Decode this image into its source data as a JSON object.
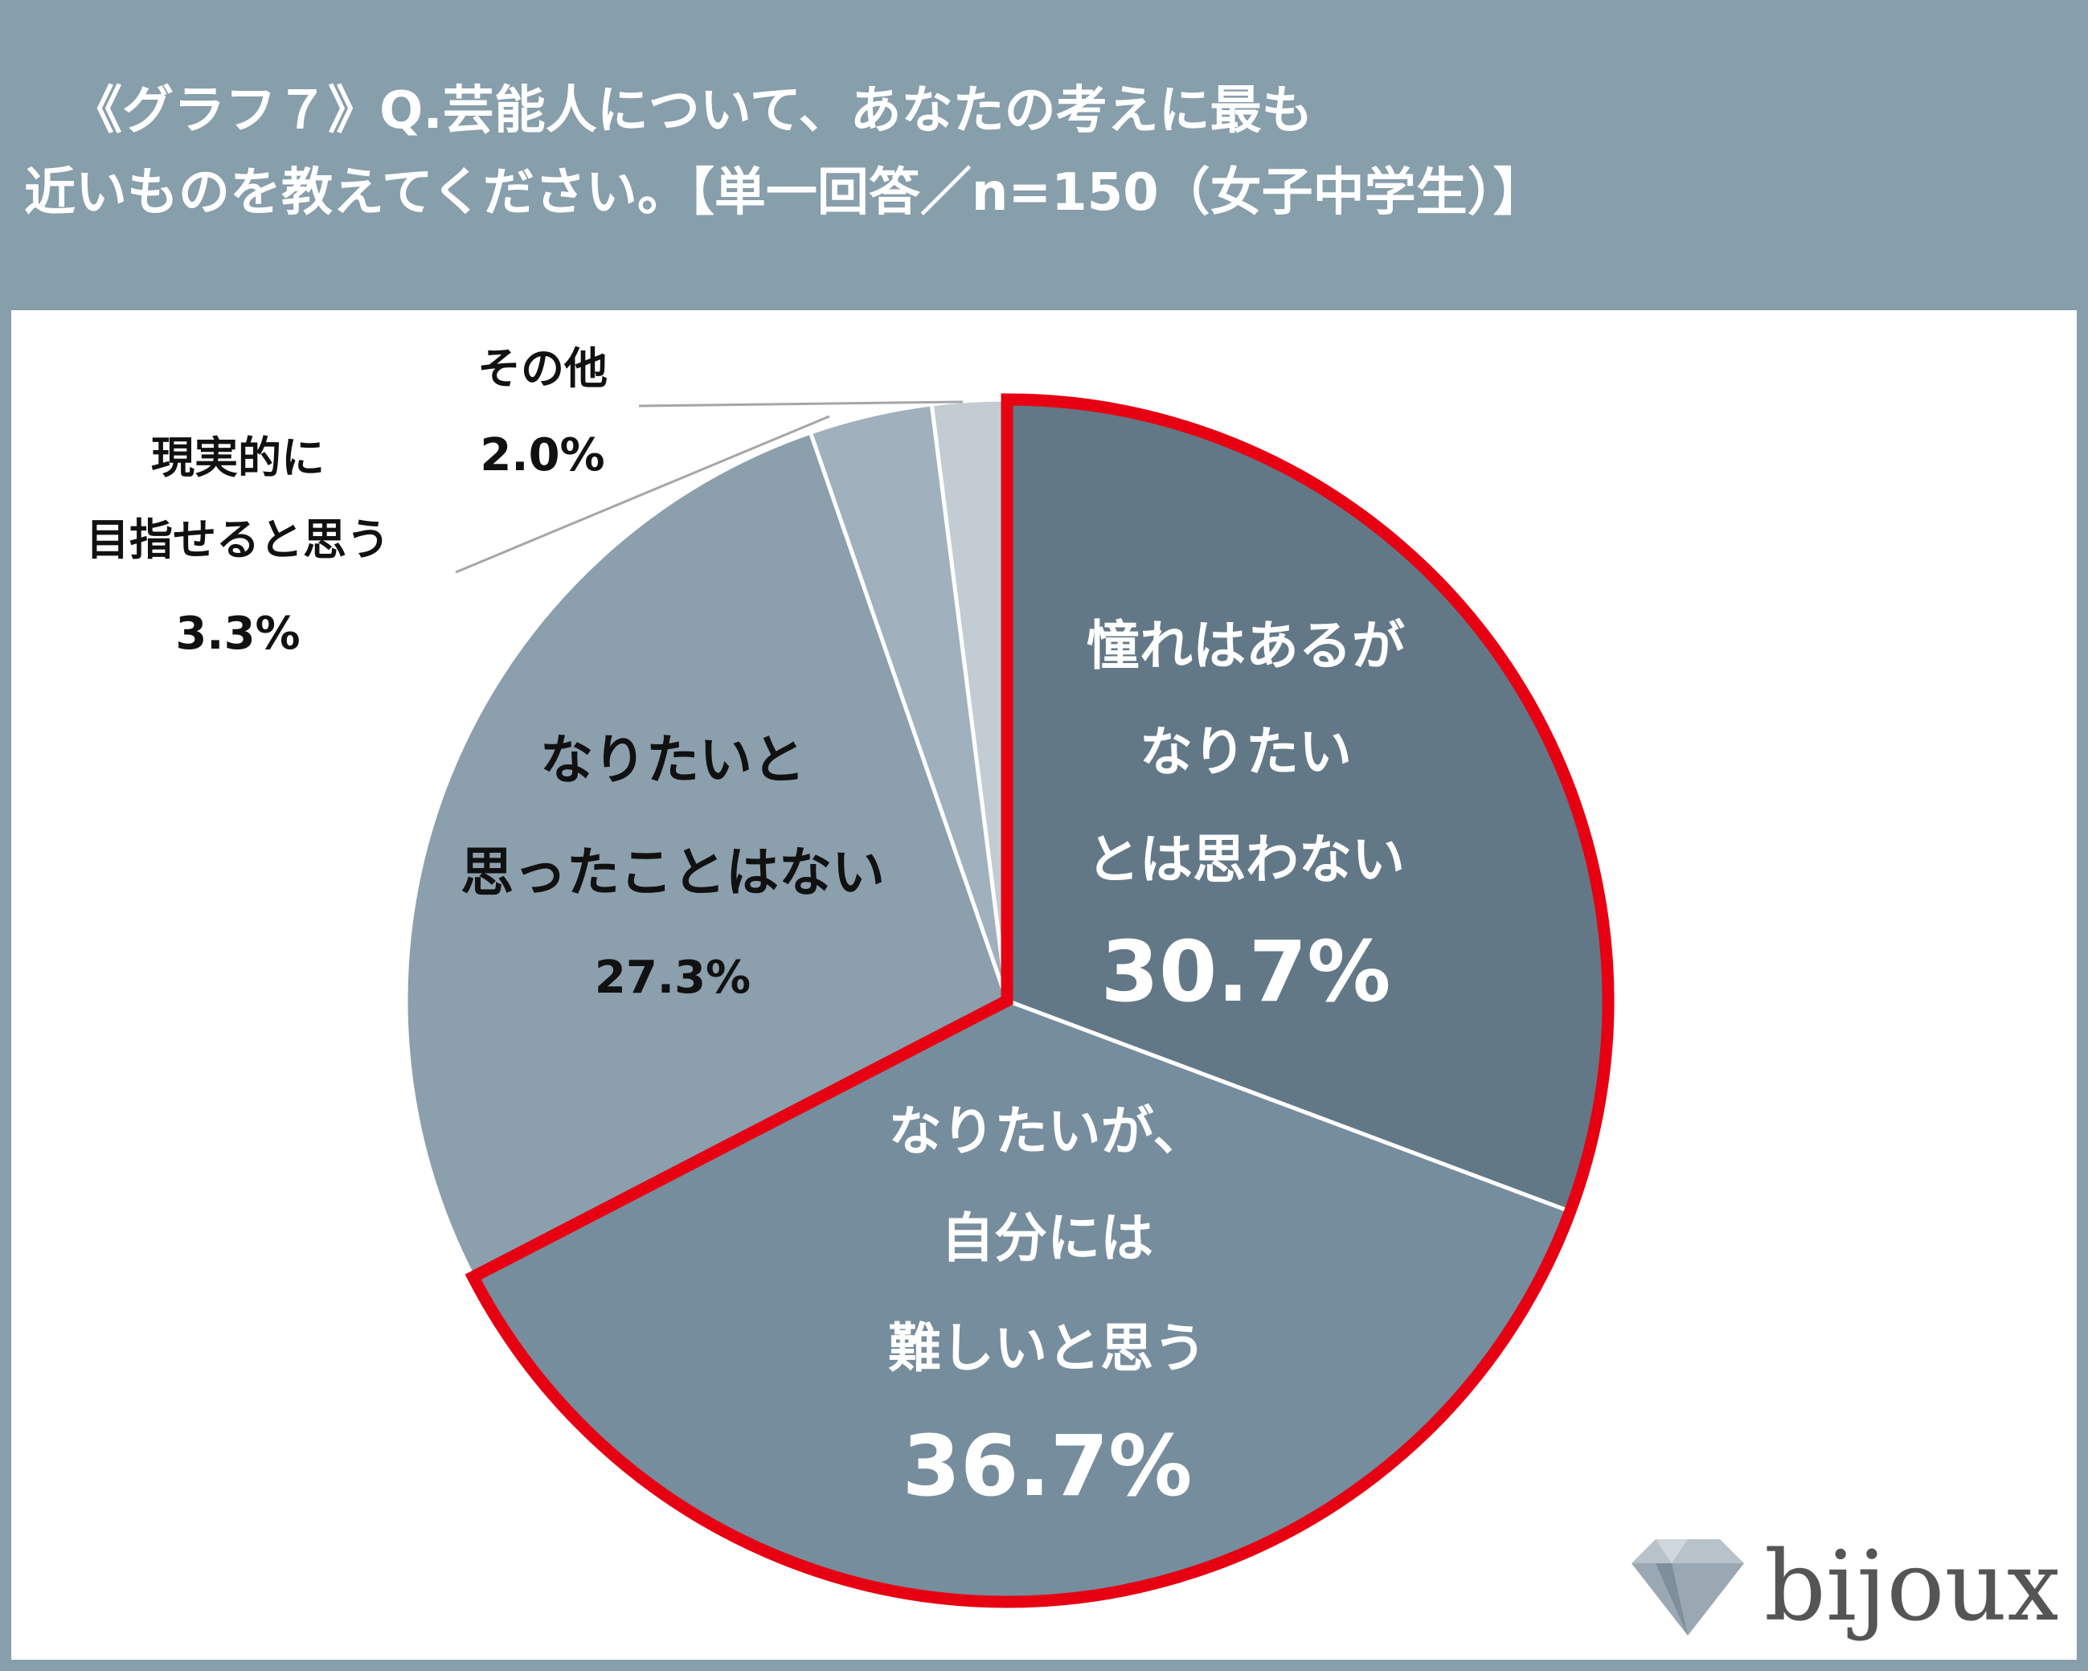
{
  "title": {
    "line1": "《グラフ７》Q.芸能人について、あなたの考えに最も",
    "line2": "近いものを教えてください。【単一回答／n=150（女子中学生）】"
  },
  "chart_data": {
    "type": "pie",
    "start": "12 o'clock, clockwise",
    "slices": [
      {
        "label_lines": [
          "憧れはあるが",
          "なりたい",
          "とは思わない"
        ],
        "value": 30.7,
        "value_text": "30.7%",
        "color": "#627887",
        "highlight": true,
        "label_color": "#ffffff"
      },
      {
        "label_lines": [
          "なりたいが、",
          "自分には",
          "難しいと思う"
        ],
        "value": 36.7,
        "value_text": "36.7%",
        "color": "#768d9d",
        "highlight": true,
        "label_color": "#ffffff"
      },
      {
        "label_lines": [
          "なりたいと",
          "思ったことはない"
        ],
        "value": 27.3,
        "value_text": "27.3%",
        "color": "#8b9fad",
        "highlight": false,
        "label_color": "#111111"
      },
      {
        "label_lines": [
          "現実的に",
          "目指せると思う"
        ],
        "value": 3.3,
        "value_text": "3.3%",
        "color": "#a0b0bc",
        "highlight": false,
        "label_color": "#111111",
        "external": true
      },
      {
        "label_lines": [
          "その他"
        ],
        "value": 2.0,
        "value_text": "2.0%",
        "color": "#c3cbd3",
        "highlight": false,
        "label_color": "#111111",
        "external": true
      }
    ],
    "highlight_color": "#e60012",
    "legend": "none"
  },
  "brand": {
    "name": "bijoux",
    "text_color": "#555555",
    "gem_colors": [
      "#9aa8b3",
      "#b7c2ca",
      "#7e8f9b"
    ]
  }
}
